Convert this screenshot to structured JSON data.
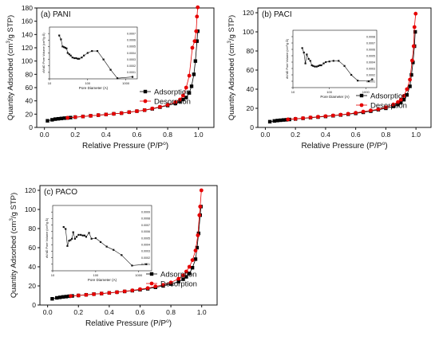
{
  "colors": {
    "adsorption": "#000000",
    "desorption": "#e60000",
    "axis": "#111111"
  },
  "chart_data": [
    {
      "type": "scatter",
      "panel_label": "(a) PANI",
      "xlabel": "Relative Pressure (P/P",
      "xlabel_sup": "o",
      "xlabel_end": ")",
      "ylabel": "Quantity Adsorbed (cm",
      "ylabel_sup": "3",
      "ylabel_end": "/g STP)",
      "xlim": [
        -0.05,
        1.1
      ],
      "ylim": [
        0,
        180
      ],
      "xticks": [
        0.0,
        0.2,
        0.4,
        0.6,
        0.8,
        1.0
      ],
      "xtick_labels": [
        "0.0",
        "0.2",
        "0.4",
        "0.6",
        "0.8",
        "1.0"
      ],
      "yticks": [
        0,
        20,
        40,
        60,
        80,
        100,
        120,
        140,
        160,
        180
      ],
      "ytick_labels": [
        "0",
        "20",
        "40",
        "60",
        "80",
        "100",
        "120",
        "140",
        "160",
        "180"
      ],
      "legend": "bottom-right",
      "series": [
        {
          "name": "Adsorption",
          "marker": "square",
          "x": [
            0.02,
            0.05,
            0.07,
            0.09,
            0.11,
            0.13,
            0.15,
            0.17,
            0.2,
            0.25,
            0.3,
            0.35,
            0.4,
            0.45,
            0.5,
            0.55,
            0.6,
            0.65,
            0.7,
            0.75,
            0.8,
            0.85,
            0.88,
            0.9,
            0.92,
            0.94,
            0.955,
            0.97,
            0.98,
            0.99,
            0.995
          ],
          "y": [
            10,
            11.5,
            12.5,
            13,
            13.5,
            14,
            14.3,
            14.8,
            15.5,
            16.5,
            17.5,
            18.5,
            19.5,
            20.5,
            21.5,
            23,
            24.5,
            26,
            28,
            30.5,
            33,
            36,
            39,
            42,
            45,
            52,
            62,
            80,
            100,
            130,
            145
          ]
        },
        {
          "name": "Desorption",
          "marker": "circle",
          "x": [
            0.995,
            0.99,
            0.985,
            0.975,
            0.96,
            0.94,
            0.92,
            0.9,
            0.88,
            0.85,
            0.8,
            0.75,
            0.7,
            0.65,
            0.6,
            0.55,
            0.5,
            0.45,
            0.4,
            0.35,
            0.3,
            0.25,
            0.2,
            0.15
          ],
          "y": [
            181,
            167,
            145,
            130,
            120,
            78,
            60,
            48,
            42,
            38,
            34,
            31,
            28.5,
            26,
            24.5,
            23,
            21.5,
            20.5,
            19.5,
            18.5,
            17.5,
            16.5,
            15.5,
            14.5
          ]
        }
      ],
      "inset": {
        "type": "line",
        "xlabel": "Pore Diameter (A)",
        "ylabel": "dV/dD Pore Volume (cm³/g·Å)",
        "xscale": "log",
        "xlim": [
          10,
          2000
        ],
        "ylim": [
          0,
          0.0008
        ],
        "xtick_labels": [
          "10",
          "100",
          "1000"
        ],
        "xticks": [
          10,
          100,
          1000
        ],
        "ytick_labels": [
          "0.0000",
          "0.0001",
          "0.0002",
          "0.0003",
          "0.0004",
          "0.0005",
          "0.0006",
          "0.0007"
        ],
        "yticks": [
          0,
          0.0001,
          0.0002,
          0.0003,
          0.0004,
          0.0005,
          0.0006,
          0.0007
        ],
        "x": [
          18,
          20,
          22,
          24,
          26,
          28,
          30,
          33,
          36,
          40,
          45,
          50,
          55,
          60,
          70,
          80,
          100,
          130,
          180,
          260,
          400,
          600,
          1500
        ],
        "y": [
          0.00067,
          0.00061,
          0.0005,
          0.00049,
          0.00048,
          0.00047,
          0.0004,
          0.00038,
          0.00036,
          0.00033,
          0.00032,
          0.00032,
          0.00031,
          0.00031,
          0.00033,
          0.00036,
          0.0004,
          0.00043,
          0.00043,
          0.0003,
          0.00014,
          1e-05,
          3e-05
        ]
      }
    },
    {
      "type": "scatter",
      "panel_label": "(b) PACI",
      "xlabel": "Relative Pressure (P/P",
      "xlabel_sup": "o",
      "xlabel_end": ")",
      "ylabel": "Quantity Adsorbed (cm",
      "ylabel_sup": "3",
      "ylabel_end": "/g STP)",
      "xlim": [
        -0.05,
        1.1
      ],
      "ylim": [
        0,
        125
      ],
      "xticks": [
        0.0,
        0.2,
        0.4,
        0.6,
        0.8,
        1.0
      ],
      "xtick_labels": [
        "0.0",
        "0.2",
        "0.4",
        "0.6",
        "0.8",
        "1.0"
      ],
      "yticks": [
        0,
        20,
        40,
        60,
        80,
        100,
        120
      ],
      "ytick_labels": [
        "0",
        "20",
        "40",
        "60",
        "80",
        "100",
        "120"
      ],
      "legend": "bottom-right",
      "series": [
        {
          "name": "Adsorption",
          "marker": "square",
          "x": [
            0.03,
            0.06,
            0.08,
            0.1,
            0.12,
            0.14,
            0.16,
            0.2,
            0.25,
            0.3,
            0.35,
            0.4,
            0.45,
            0.5,
            0.55,
            0.6,
            0.65,
            0.7,
            0.75,
            0.8,
            0.85,
            0.88,
            0.9,
            0.92,
            0.94,
            0.96,
            0.97,
            0.98,
            0.99,
            0.995
          ],
          "y": [
            6,
            6.8,
            7.2,
            7.5,
            7.8,
            8,
            8.3,
            8.8,
            9.5,
            10.2,
            10.8,
            11.5,
            12.2,
            13,
            13.8,
            14.7,
            15.8,
            17,
            18.5,
            20,
            22,
            24,
            26,
            29,
            34,
            43,
            55,
            68,
            85,
            100
          ]
        },
        {
          "name": "Desorption",
          "marker": "circle",
          "x": [
            0.998,
            0.99,
            0.985,
            0.975,
            0.96,
            0.94,
            0.92,
            0.9,
            0.88,
            0.85,
            0.8,
            0.75,
            0.7,
            0.65,
            0.6,
            0.55,
            0.5,
            0.45,
            0.4,
            0.35,
            0.3,
            0.25,
            0.2,
            0.15
          ],
          "y": [
            119,
            105,
            85,
            70,
            50,
            40,
            33,
            29,
            26.5,
            24,
            21,
            19,
            17.8,
            16.5,
            15.3,
            14.2,
            13.3,
            12.5,
            11.8,
            11.1,
            10.4,
            9.7,
            9,
            8.4
          ]
        }
      ],
      "inset": {
        "type": "line",
        "xlabel": "Pore Diameter (A)",
        "ylabel": "dV/dD Pore Volume (cm³/g·Å)",
        "xscale": "log",
        "xlim": [
          10,
          2000
        ],
        "ylim": [
          0,
          0.0009
        ],
        "xtick_labels": [
          "10",
          "100",
          "1000"
        ],
        "xticks": [
          10,
          100,
          1000
        ],
        "ytick_labels": [
          "0.0000",
          "0.0001",
          "0.0002",
          "0.0003",
          "0.0004",
          "0.0005",
          "0.0006",
          "0.0007",
          "0.0008"
        ],
        "yticks": [
          0,
          0.0001,
          0.0002,
          0.0003,
          0.0004,
          0.0005,
          0.0006,
          0.0007,
          0.0008
        ],
        "x": [
          18,
          20,
          22,
          24,
          27,
          30,
          33,
          36,
          40,
          45,
          50,
          55,
          60,
          70,
          80,
          100,
          130,
          180,
          260,
          400,
          600,
          1200,
          1500
        ],
        "y": [
          0.00062,
          0.00055,
          0.00038,
          0.00052,
          0.00045,
          0.00042,
          0.00035,
          0.00034,
          0.00033,
          0.00033,
          0.00034,
          0.00035,
          0.00035,
          0.00038,
          0.0004,
          0.00041,
          0.00042,
          0.00042,
          0.00034,
          0.0002,
          0.00011,
          0.0001,
          0.00013
        ]
      }
    },
    {
      "type": "scatter",
      "panel_label": "(c) PACO",
      "xlabel": "Relative Pressure (P/P",
      "xlabel_sup": "o",
      "xlabel_end": ")",
      "ylabel": "Quantity Adsorbed (cm",
      "ylabel_sup": "3",
      "ylabel_end": "/g STP)",
      "xlim": [
        -0.05,
        1.1
      ],
      "ylim": [
        0,
        125
      ],
      "xticks": [
        0.0,
        0.2,
        0.4,
        0.6,
        0.8,
        1.0
      ],
      "xtick_labels": [
        "0.0",
        "0.2",
        "0.4",
        "0.6",
        "0.8",
        "1.0"
      ],
      "yticks": [
        0,
        20,
        40,
        60,
        80,
        100,
        120
      ],
      "ytick_labels": [
        "0",
        "20",
        "40",
        "60",
        "80",
        "100",
        "120"
      ],
      "legend": "bottom-right",
      "series": [
        {
          "name": "Adsorption",
          "marker": "square",
          "x": [
            0.03,
            0.06,
            0.08,
            0.1,
            0.12,
            0.14,
            0.16,
            0.2,
            0.25,
            0.3,
            0.35,
            0.4,
            0.45,
            0.5,
            0.55,
            0.6,
            0.65,
            0.7,
            0.75,
            0.8,
            0.85,
            0.88,
            0.9,
            0.92,
            0.94,
            0.96,
            0.97,
            0.98,
            0.99,
            0.995
          ],
          "y": [
            6.5,
            7.5,
            8,
            8.5,
            8.8,
            9.2,
            9.5,
            10,
            10.7,
            11.4,
            12,
            12.7,
            13.4,
            14.2,
            15,
            16,
            17,
            18.5,
            20,
            22,
            24.5,
            27,
            29.5,
            33,
            39,
            48,
            60,
            75,
            94,
            103
          ]
        },
        {
          "name": "Desorption",
          "marker": "circle",
          "x": [
            0.998,
            0.99,
            0.985,
            0.975,
            0.96,
            0.94,
            0.92,
            0.9,
            0.88,
            0.85,
            0.8,
            0.75,
            0.7,
            0.65,
            0.6,
            0.55,
            0.5,
            0.45,
            0.4,
            0.35,
            0.3,
            0.25,
            0.2,
            0.15
          ],
          "y": [
            120,
            103,
            94,
            73,
            57,
            47,
            40,
            35,
            31,
            27.5,
            23.5,
            21,
            19.5,
            17.7,
            16.5,
            15.3,
            14.3,
            13.4,
            12.7,
            12,
            11.3,
            10.6,
            10,
            9.4
          ]
        }
      ],
      "inset": {
        "type": "line",
        "xlabel": "Pore Diameter (A)",
        "ylabel": "dV/dD Pore Volume (cm³/g·Å)",
        "xscale": "log",
        "xlim": [
          10,
          2000
        ],
        "ylim": [
          0,
          0.001
        ],
        "xtick_labels": [
          "10",
          "100",
          "1000"
        ],
        "xticks": [
          10,
          100,
          1000
        ],
        "ytick_labels": [
          "0.0000",
          "0.0001",
          "0.0002",
          "0.0003",
          "0.0004",
          "0.0005",
          "0.0006",
          "0.0007",
          "0.0008",
          "0.0009"
        ],
        "yticks": [
          0,
          0.0001,
          0.0002,
          0.0003,
          0.0004,
          0.0005,
          0.0006,
          0.0007,
          0.0008,
          0.0009
        ],
        "x": [
          18,
          20,
          22,
          24,
          26,
          28,
          30,
          33,
          36,
          40,
          45,
          50,
          55,
          60,
          70,
          80,
          100,
          130,
          180,
          260,
          400,
          700,
          1500
        ],
        "y": [
          0.00067,
          0.00064,
          0.00038,
          0.00046,
          0.00047,
          0.00049,
          0.00059,
          0.00049,
          0.00052,
          0.00055,
          0.00055,
          0.00054,
          0.00054,
          0.00052,
          0.00058,
          0.00049,
          0.0005,
          0.00044,
          0.00037,
          0.00032,
          0.00024,
          8e-05,
          0.0001
        ]
      }
    }
  ]
}
